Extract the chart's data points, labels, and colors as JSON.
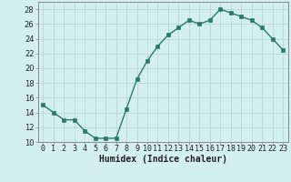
{
  "x": [
    0,
    1,
    2,
    3,
    4,
    5,
    6,
    7,
    8,
    9,
    10,
    11,
    12,
    13,
    14,
    15,
    16,
    17,
    18,
    19,
    20,
    21,
    22,
    23
  ],
  "y": [
    15,
    14,
    13,
    13,
    11.5,
    10.5,
    10.5,
    10.5,
    14.5,
    18.5,
    21,
    23,
    24.5,
    25.5,
    26.5,
    26,
    26.5,
    28,
    27.5,
    27,
    26.5,
    25.5,
    24,
    22.5
  ],
  "line_color": "#2a7a6a",
  "marker_color": "#2a7a6a",
  "bg_color": "#d4f0ee",
  "grid_color": "#b8d8d4",
  "xlabel": "Humidex (Indice chaleur)",
  "xlim": [
    -0.5,
    23.5
  ],
  "ylim": [
    10,
    29
  ],
  "yticks": [
    10,
    12,
    14,
    16,
    18,
    20,
    22,
    24,
    26,
    28
  ],
  "xticks": [
    0,
    1,
    2,
    3,
    4,
    5,
    6,
    7,
    8,
    9,
    10,
    11,
    12,
    13,
    14,
    15,
    16,
    17,
    18,
    19,
    20,
    21,
    22,
    23
  ],
  "font_color": "#222222",
  "xlabel_fontsize": 7.0,
  "tick_fontsize": 6.0,
  "linewidth": 1.0,
  "markersize": 2.5
}
